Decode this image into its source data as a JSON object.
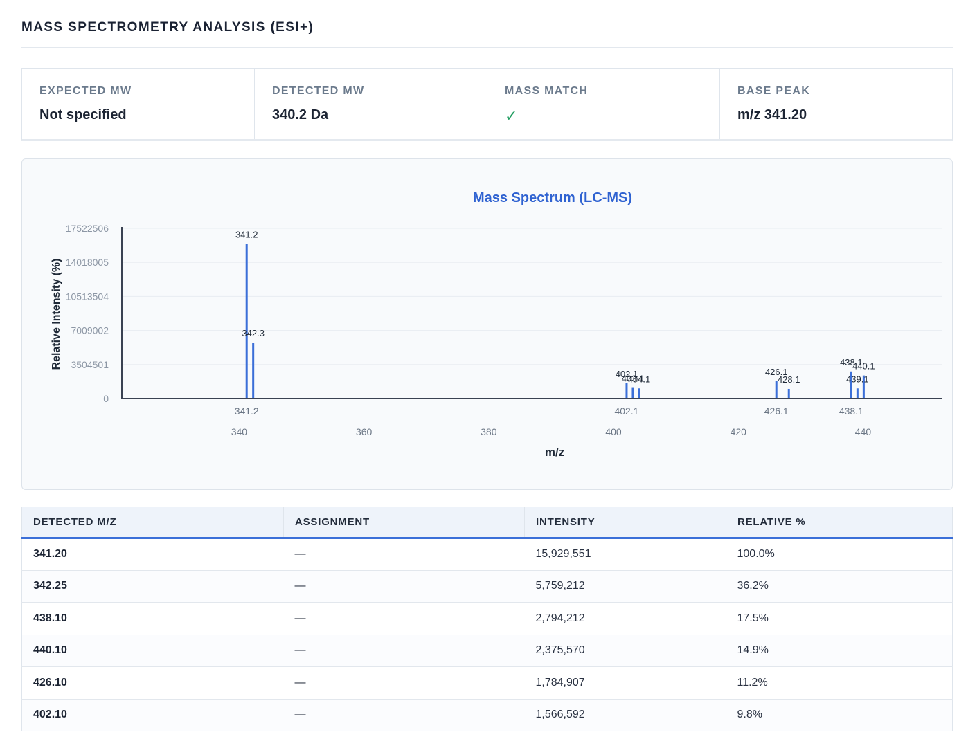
{
  "header": {
    "title": "MASS SPECTROMETRY ANALYSIS (ESI+)"
  },
  "summary": [
    {
      "label": "EXPECTED MW",
      "value": "Not specified"
    },
    {
      "label": "DETECTED MW",
      "value": "340.2 Da"
    },
    {
      "label": "MASS MATCH",
      "value": "✓"
    },
    {
      "label": "BASE PEAK",
      "value": "m/z 341.20"
    }
  ],
  "colors": {
    "accent": "#3b6fd8",
    "title": "#2f62d1",
    "check": "#1d9b5e",
    "axis": "#3a4252"
  },
  "chart_data": {
    "type": "bar",
    "title": "Mass Spectrum (LC-MS)",
    "xlabel": "m/z",
    "ylabel": "Relative Intensity (%)",
    "xlim": [
      321.2,
      452.6
    ],
    "ylim": [
      0,
      17522506
    ],
    "x_ticks": [
      "340",
      "360",
      "380",
      "400",
      "420",
      "440"
    ],
    "x_tick_values": [
      340,
      360,
      380,
      400,
      420,
      440
    ],
    "y_ticks": [
      "0",
      "3504501",
      "7009002",
      "10513504",
      "14018005",
      "17522506"
    ],
    "y_tick_values": [
      0,
      3504501,
      7009002,
      10513504,
      14018005,
      17522506
    ],
    "highlighted_ticks": [
      "341.2",
      "402.1",
      "426.1",
      "438.1"
    ],
    "highlighted_tick_values": [
      341.2,
      402.1,
      426.1,
      438.1
    ],
    "grid": true,
    "series": [
      {
        "peaks": [
          {
            "mz": 341.2,
            "intensity": 15929551,
            "label": "341.2"
          },
          {
            "mz": 342.25,
            "intensity": 5759212,
            "label": "342.3"
          },
          {
            "mz": 402.1,
            "intensity": 1566592,
            "label": "402.1"
          },
          {
            "mz": 403.1,
            "intensity": 1100000,
            "label": "403.1"
          },
          {
            "mz": 404.1,
            "intensity": 1050000,
            "label": "404.1"
          },
          {
            "mz": 426.1,
            "intensity": 1784907,
            "label": "426.1"
          },
          {
            "mz": 428.1,
            "intensity": 1000000,
            "label": "428.1"
          },
          {
            "mz": 438.1,
            "intensity": 2794212,
            "label": "438.1"
          },
          {
            "mz": 439.1,
            "intensity": 1050000,
            "label": "439.1"
          },
          {
            "mz": 440.1,
            "intensity": 2375570,
            "label": "440.1"
          }
        ]
      }
    ]
  },
  "table": {
    "headers": [
      "DETECTED M/Z",
      "ASSIGNMENT",
      "INTENSITY",
      "RELATIVE %"
    ],
    "rows": [
      {
        "mz": "341.20",
        "assignment": "—",
        "intensity": "15,929,551",
        "relative": "100.0%"
      },
      {
        "mz": "342.25",
        "assignment": "—",
        "intensity": "5,759,212",
        "relative": "36.2%"
      },
      {
        "mz": "438.10",
        "assignment": "—",
        "intensity": "2,794,212",
        "relative": "17.5%"
      },
      {
        "mz": "440.10",
        "assignment": "—",
        "intensity": "2,375,570",
        "relative": "14.9%"
      },
      {
        "mz": "426.10",
        "assignment": "—",
        "intensity": "1,784,907",
        "relative": "11.2%"
      },
      {
        "mz": "402.10",
        "assignment": "—",
        "intensity": "1,566,592",
        "relative": "9.8%"
      }
    ]
  }
}
